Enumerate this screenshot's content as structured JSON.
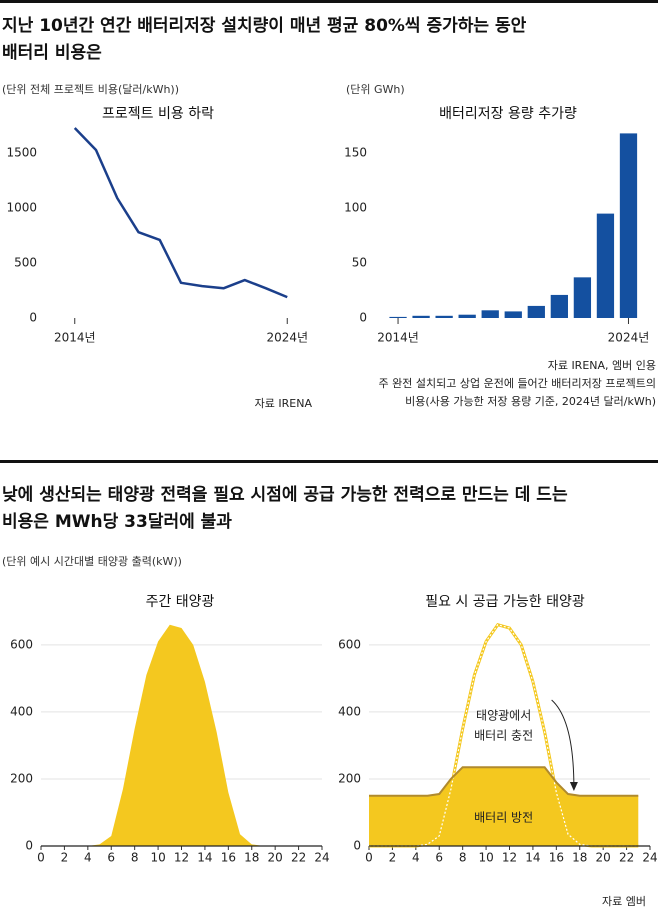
{
  "sections": [
    {
      "headline": [
        "지난 10년간 연간 배터리저장 설치량이 매년 평균 80%씩 증가하는 동안",
        "배터리 비용은"
      ]
    },
    {
      "headline": [
        "낮에 생산되는 태양광 전력을 필요 시점에 공급 가능한 전력으로 만드는 데 드는",
        "비용은 MWh당 33달러에 불과"
      ],
      "unit": "(단위 예시 시간대별 태양광 출력(kW))",
      "source": "자료 엠버"
    }
  ],
  "chart_data": [
    {
      "type": "line",
      "title": "프로젝트 비용 하락",
      "unit": "(단위 전체 프로젝트 비용(달러/kWh))",
      "x": [
        2014,
        2015,
        2016,
        2017,
        2018,
        2019,
        2020,
        2021,
        2022,
        2023,
        2024
      ],
      "values": [
        1727,
        1527,
        1090,
        780,
        710,
        320,
        290,
        270,
        345,
        270,
        190
      ],
      "color": "#1b3f8b",
      "xlim": [
        2012.6,
        2024.6
      ],
      "ylim": [
        0,
        1800
      ],
      "xticks": [
        {
          "value": 2014,
          "label": "2014년"
        },
        {
          "value": 2024,
          "label": "2024년"
        }
      ],
      "yticks": [
        0,
        500,
        1000,
        1500
      ],
      "source": "자료 IRENA"
    },
    {
      "type": "bar",
      "title": "배터리저장 용량 추가량",
      "unit": "(단위 GWh)",
      "x": [
        2014,
        2015,
        2016,
        2017,
        2018,
        2019,
        2020,
        2021,
        2022,
        2023,
        2024
      ],
      "values": [
        1,
        2,
        2,
        3,
        7,
        6,
        11,
        21,
        37,
        95,
        168
      ],
      "color": "#1450a0",
      "xlim": [
        2013,
        2024.5
      ],
      "ylim": [
        0,
        172
      ],
      "xticks": [
        {
          "value": 2014,
          "label": "2014년"
        },
        {
          "value": 2024,
          "label": "2024년"
        }
      ],
      "yticks": [
        0,
        50,
        100,
        150
      ],
      "source": "자료 IRENA, 엠버 인용",
      "notes": [
        "주 완전 설치되고 상업 운전에 들어간 배터리저장 프로젝트의",
        "비용(사용 가능한 저장 용량 기준, 2024년 달러/kWh)"
      ]
    },
    {
      "type": "area",
      "title": "주간 태양광",
      "x": [
        0,
        1,
        2,
        3,
        4,
        5,
        6,
        7,
        8,
        9,
        10,
        11,
        12,
        13,
        14,
        15,
        16,
        17,
        18,
        19,
        20,
        21,
        22,
        23
      ],
      "values": [
        0,
        0,
        0,
        0,
        0,
        5,
        30,
        170,
        350,
        510,
        610,
        660,
        650,
        600,
        490,
        340,
        160,
        35,
        5,
        0,
        0,
        0,
        0,
        0
      ],
      "color": "#f4c81f",
      "xlim": [
        0,
        24
      ],
      "ylim": [
        0,
        680
      ],
      "xticks": [
        0,
        2,
        4,
        6,
        8,
        10,
        12,
        14,
        16,
        18,
        20,
        22,
        24
      ],
      "yticks": [
        0,
        200,
        400,
        600
      ],
      "grid": true
    },
    {
      "type": "storage",
      "title": "필요 시 공급 가능한 태양광",
      "x": [
        0,
        1,
        2,
        3,
        4,
        5,
        6,
        7,
        8,
        9,
        10,
        11,
        12,
        13,
        14,
        15,
        16,
        17,
        18,
        19,
        20,
        21,
        22,
        23
      ],
      "series": [
        {
          "color": "#f4c81f",
          "values": [
            0,
            0,
            0,
            0,
            0,
            5,
            30,
            170,
            350,
            510,
            610,
            660,
            650,
            600,
            490,
            340,
            160,
            35,
            5,
            0,
            0,
            0,
            0,
            0
          ]
        },
        {
          "color": "#f4c81f",
          "line_color": "#b08a2e",
          "values": [
            150,
            150,
            150,
            150,
            150,
            150,
            155,
            200,
            235,
            235,
            235,
            235,
            235,
            235,
            235,
            235,
            190,
            155,
            150,
            150,
            150,
            150,
            150,
            150
          ]
        }
      ],
      "annotations": [
        "태양광에서",
        "배터리 충전",
        "배터리 방전"
      ],
      "xlim": [
        0,
        24
      ],
      "ylim": [
        0,
        680
      ],
      "xticks": [
        0,
        2,
        4,
        6,
        8,
        10,
        12,
        14,
        16,
        18,
        20,
        22,
        24
      ],
      "yticks": [
        0,
        200,
        400,
        600
      ],
      "grid": true
    }
  ]
}
